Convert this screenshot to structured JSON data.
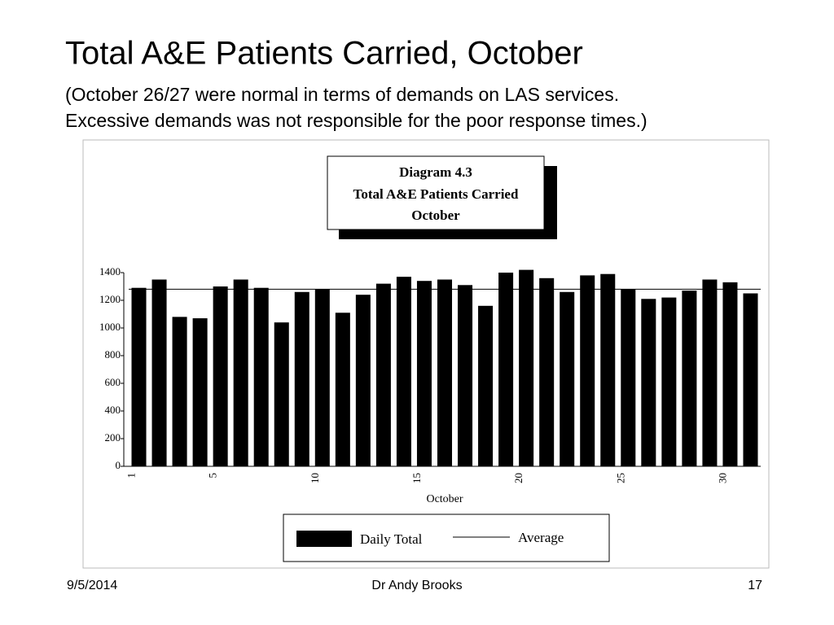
{
  "slide": {
    "title": "Total A&E Patients Carried, October",
    "subtitle": [
      "(October 26/27 were normal in terms of demands on LAS services.",
      "Excessive demands was not responsible for the poor response times.)"
    ],
    "footer": {
      "date": "9/5/2014",
      "author": "Dr Andy Brooks",
      "page": "17"
    }
  },
  "chart_data": {
    "type": "bar",
    "title": [
      "Diagram 4.3",
      "Total A&E Patients Carried",
      "October"
    ],
    "x_label": "October",
    "categories": [
      1,
      null,
      null,
      null,
      5,
      null,
      null,
      null,
      null,
      10,
      null,
      null,
      null,
      null,
      15,
      null,
      null,
      null,
      null,
      20,
      null,
      null,
      null,
      null,
      25,
      null,
      null,
      null,
      null,
      30,
      null
    ],
    "series": [
      {
        "name": "Daily Total",
        "color": "#000000",
        "values": [
          1290,
          1350,
          1080,
          1070,
          1300,
          1350,
          1290,
          1040,
          1260,
          1280,
          1110,
          1240,
          1320,
          1370,
          1340,
          1350,
          1310,
          1160,
          1400,
          1420,
          1360,
          1260,
          1380,
          1390,
          1280,
          1210,
          1220,
          1270,
          1350,
          1330,
          1250
        ]
      }
    ],
    "average": {
      "name": "Average",
      "value": 1280
    },
    "ylim": [
      0,
      1400
    ],
    "yticks": [
      0,
      200,
      400,
      600,
      800,
      1000,
      1200,
      1400
    ],
    "grid": false
  }
}
